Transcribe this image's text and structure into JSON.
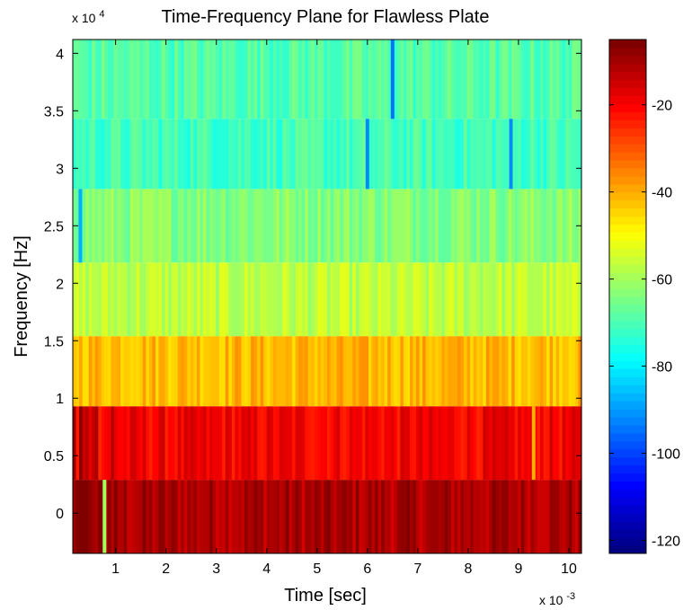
{
  "chart_data": {
    "type": "heatmap",
    "title": "Time-Frequency Plane for Flawless Plate",
    "xlabel": "Time [sec]",
    "ylabel": "Frequency [Hz]",
    "x_multiplier": "x 10",
    "x_multiplier_exp": "-3",
    "y_multiplier": "x 10",
    "y_multiplier_exp": "4",
    "xlim": [
      0.15,
      10.25
    ],
    "ylim": [
      -0.35,
      4.12
    ],
    "x_ticks": [
      1,
      2,
      3,
      4,
      5,
      6,
      7,
      8,
      9,
      10
    ],
    "y_ticks": [
      0,
      0.5,
      1,
      1.5,
      2,
      2.5,
      3,
      3.5,
      4
    ],
    "colorbar": {
      "range": [
        -123,
        -5
      ],
      "ticks": [
        -20,
        -40,
        -60,
        -80,
        -100,
        -120
      ],
      "colormap": "jet"
    },
    "frequency_bands": [
      {
        "y_from": -0.35,
        "y_to": 0.29,
        "mean_level": -10
      },
      {
        "y_from": 0.29,
        "y_to": 0.93,
        "mean_level": -19
      },
      {
        "y_from": 0.93,
        "y_to": 1.54,
        "mean_level": -41
      },
      {
        "y_from": 1.54,
        "y_to": 2.18,
        "mean_level": -57
      },
      {
        "y_from": 2.18,
        "y_to": 2.82,
        "mean_level": -63
      },
      {
        "y_from": 2.82,
        "y_to": 3.43,
        "mean_level": -71
      },
      {
        "y_from": 3.43,
        "y_to": 4.12,
        "mean_level": -69
      }
    ],
    "notable_cells": [
      {
        "time": 0.78,
        "band": 0,
        "level": -60
      },
      {
        "time": 6.5,
        "band": 6,
        "level": -95
      },
      {
        "time": 6.0,
        "band": 5,
        "level": -92
      },
      {
        "time": 8.85,
        "band": 5,
        "level": -92
      },
      {
        "time": 0.3,
        "band": 4,
        "level": -88
      },
      {
        "time": 9.3,
        "band": 1,
        "level": -40
      }
    ]
  }
}
